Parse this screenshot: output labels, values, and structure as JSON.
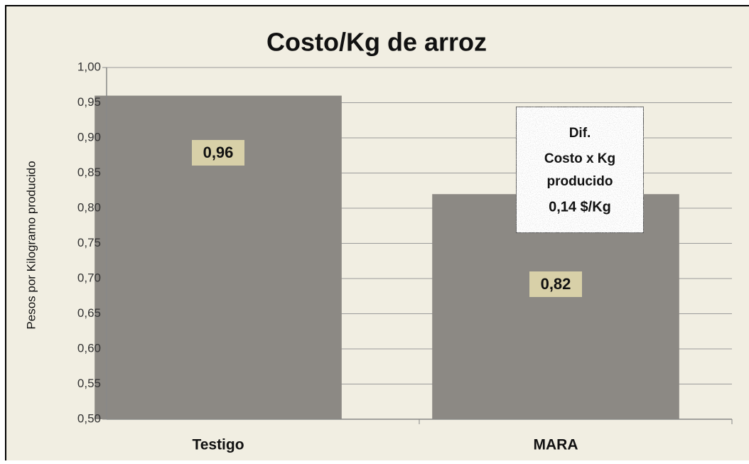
{
  "chart_data": {
    "type": "bar",
    "title": "Costo/Kg de arroz",
    "y_label": "Pesos por Kilogramo producido",
    "categories": [
      "Testigo",
      "MARA"
    ],
    "values": [
      0.96,
      0.82
    ],
    "value_labels": [
      "0,96",
      "0,82"
    ],
    "color": "#8c8984",
    "ylim": [
      0.5,
      1.0
    ],
    "yticks": [
      {
        "value": 0.5,
        "label": "0,50"
      },
      {
        "value": 0.55,
        "label": "0,55"
      },
      {
        "value": 0.6,
        "label": "0,60"
      },
      {
        "value": 0.65,
        "label": "0,65"
      },
      {
        "value": 0.7,
        "label": "0,70"
      },
      {
        "value": 0.75,
        "label": "0,75"
      },
      {
        "value": 0.8,
        "label": "0,80"
      },
      {
        "value": 0.85,
        "label": "0,85"
      },
      {
        "value": 0.9,
        "label": "0,90"
      },
      {
        "value": 0.95,
        "label": "0,95"
      },
      {
        "value": 1.0,
        "label": "1,00"
      }
    ],
    "grid": true,
    "annotation": [
      "Dif.",
      "Costo x Kg",
      "producido",
      "0,14 $/Kg"
    ]
  }
}
